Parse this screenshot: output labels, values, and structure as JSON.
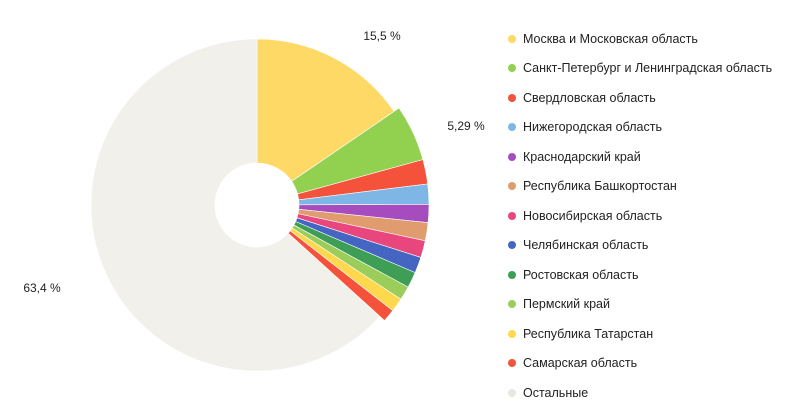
{
  "chart_data": {
    "type": "pie",
    "title": "",
    "legend_position": "right",
    "slices": [
      {
        "name": "Москва и Московская область",
        "value": 15.5,
        "label": "15,5 %",
        "color": "#FFD966"
      },
      {
        "name": "Санкт-Петербург и Ленинградская область",
        "value": 5.29,
        "label": "5,29 %",
        "color": "#92D050"
      },
      {
        "name": "Свердловская область",
        "value": 2.3,
        "label": "",
        "color": "#F4523B"
      },
      {
        "name": "Нижегородская область",
        "value": 1.9,
        "label": "",
        "color": "#7EB6E6"
      },
      {
        "name": "Краснодарский край",
        "value": 1.7,
        "label": "",
        "color": "#A64CBF"
      },
      {
        "name": "Республика Башкортостан",
        "value": 1.7,
        "label": "",
        "color": "#E09C6E"
      },
      {
        "name": "Новосибирская область",
        "value": 1.6,
        "label": "",
        "color": "#E8467C"
      },
      {
        "name": "Челябинская область",
        "value": 1.5,
        "label": "",
        "color": "#4466C2"
      },
      {
        "name": "Ростовская область",
        "value": 1.5,
        "label": "",
        "color": "#3E9E56"
      },
      {
        "name": "Пермский край",
        "value": 1.3,
        "label": "",
        "color": "#9ACD5A"
      },
      {
        "name": "Республика Татарстан",
        "value": 1.3,
        "label": "",
        "color": "#FFD84D"
      },
      {
        "name": "Самарская область",
        "value": 1.2,
        "label": "",
        "color": "#F4523B"
      },
      {
        "name": "Остальные",
        "value": 63.4,
        "label": "63,4 %",
        "color": "#F2F0EB"
      }
    ]
  }
}
